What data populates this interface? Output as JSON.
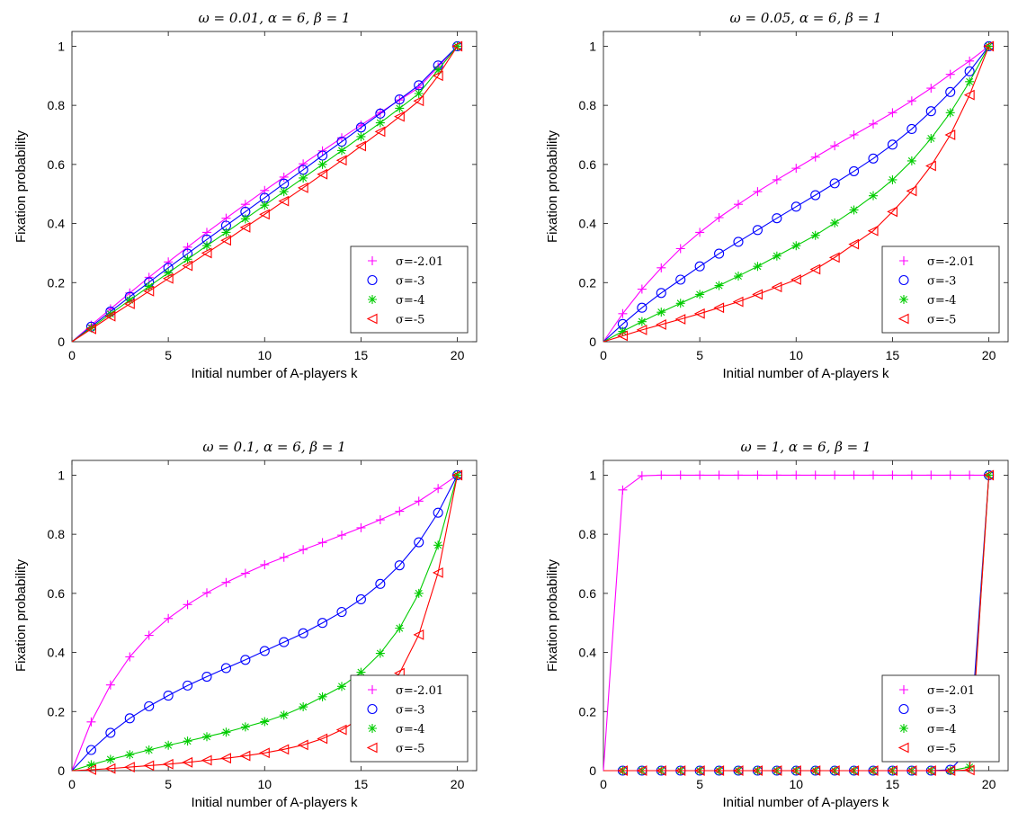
{
  "chart_data": [
    {
      "type": "line",
      "title": "ω = 0.01, α = 6, β = 1",
      "xlabel": "Initial number of A-players k",
      "ylabel": "Fixation probability",
      "xlim": [
        0,
        21
      ],
      "ylim": [
        0,
        1.05
      ],
      "xticks": [
        "0",
        "5",
        "10",
        "15",
        "20"
      ],
      "yticks": [
        "0",
        "0.2",
        "0.4",
        "0.6",
        "0.8",
        "1"
      ],
      "legend_position": "lower-right",
      "x": [
        0,
        1,
        2,
        3,
        4,
        5,
        6,
        7,
        8,
        9,
        10,
        11,
        12,
        13,
        14,
        15,
        16,
        17,
        18,
        19,
        20
      ],
      "series": [
        {
          "name": "σ=-2.01",
          "color": "#ff00ff",
          "marker": "plus",
          "values": [
            0,
            0.056,
            0.111,
            0.165,
            0.218,
            0.27,
            0.32,
            0.37,
            0.418,
            0.465,
            0.512,
            0.557,
            0.602,
            0.646,
            0.69,
            0.733,
            0.776,
            0.818,
            0.86,
            0.93,
            1
          ]
        },
        {
          "name": "σ=-3",
          "color": "#0000ff",
          "marker": "circle",
          "values": [
            0,
            0.051,
            0.102,
            0.152,
            0.201,
            0.25,
            0.298,
            0.346,
            0.393,
            0.44,
            0.487,
            0.535,
            0.582,
            0.63,
            0.677,
            0.725,
            0.772,
            0.82,
            0.868,
            0.935,
            1
          ]
        },
        {
          "name": "σ=-4",
          "color": "#00cc00",
          "marker": "asterisk",
          "values": [
            0,
            0.047,
            0.094,
            0.141,
            0.187,
            0.233,
            0.279,
            0.325,
            0.37,
            0.416,
            0.462,
            0.508,
            0.554,
            0.6,
            0.647,
            0.694,
            0.741,
            0.79,
            0.84,
            0.92,
            1
          ]
        },
        {
          "name": "σ=-5",
          "color": "#ff0000",
          "marker": "triangle-left",
          "values": [
            0,
            0.043,
            0.086,
            0.128,
            0.171,
            0.214,
            0.257,
            0.3,
            0.343,
            0.387,
            0.431,
            0.476,
            0.521,
            0.567,
            0.614,
            0.662,
            0.711,
            0.762,
            0.815,
            0.9,
            1
          ]
        }
      ]
    },
    {
      "type": "line",
      "title": "ω = 0.05, α = 6, β = 1",
      "xlabel": "Initial number of A-players k",
      "ylabel": "Fixation probability",
      "xlim": [
        0,
        21
      ],
      "ylim": [
        0,
        1.05
      ],
      "xticks": [
        "0",
        "5",
        "10",
        "15",
        "20"
      ],
      "yticks": [
        "0",
        "0.2",
        "0.4",
        "0.6",
        "0.8",
        "1"
      ],
      "legend_position": "lower-right",
      "x": [
        0,
        1,
        2,
        3,
        4,
        5,
        6,
        7,
        8,
        9,
        10,
        11,
        12,
        13,
        14,
        15,
        16,
        17,
        18,
        19,
        20
      ],
      "series": [
        {
          "name": "σ=-2.01",
          "color": "#ff00ff",
          "marker": "plus",
          "values": [
            0,
            0.095,
            0.178,
            0.25,
            0.315,
            0.37,
            0.42,
            0.465,
            0.508,
            0.548,
            0.587,
            0.625,
            0.663,
            0.7,
            0.737,
            0.775,
            0.815,
            0.858,
            0.905,
            0.95,
            1
          ]
        },
        {
          "name": "σ=-3",
          "color": "#0000ff",
          "marker": "circle",
          "values": [
            0,
            0.06,
            0.115,
            0.165,
            0.21,
            0.255,
            0.298,
            0.338,
            0.378,
            0.418,
            0.457,
            0.496,
            0.536,
            0.577,
            0.62,
            0.667,
            0.72,
            0.78,
            0.845,
            0.915,
            1
          ]
        },
        {
          "name": "σ=-4",
          "color": "#00cc00",
          "marker": "asterisk",
          "values": [
            0,
            0.035,
            0.068,
            0.1,
            0.13,
            0.16,
            0.19,
            0.222,
            0.255,
            0.29,
            0.325,
            0.36,
            0.402,
            0.446,
            0.494,
            0.548,
            0.612,
            0.688,
            0.775,
            0.88,
            1
          ]
        },
        {
          "name": "σ=-5",
          "color": "#ff0000",
          "marker": "triangle-left",
          "values": [
            0,
            0.02,
            0.04,
            0.058,
            0.076,
            0.095,
            0.115,
            0.135,
            0.16,
            0.185,
            0.21,
            0.245,
            0.285,
            0.33,
            0.375,
            0.44,
            0.51,
            0.595,
            0.7,
            0.835,
            1
          ]
        }
      ]
    },
    {
      "type": "line",
      "title": "ω = 0.1, α = 6, β = 1",
      "xlabel": "Initial number of A-players k",
      "ylabel": "Fixation probability",
      "xlim": [
        0,
        21
      ],
      "ylim": [
        0,
        1.05
      ],
      "xticks": [
        "0",
        "5",
        "10",
        "15",
        "20"
      ],
      "yticks": [
        "0",
        "0.2",
        "0.4",
        "0.6",
        "0.8",
        "1"
      ],
      "legend_position": "lower-right",
      "x": [
        0,
        1,
        2,
        3,
        4,
        5,
        6,
        7,
        8,
        9,
        10,
        11,
        12,
        13,
        14,
        15,
        16,
        17,
        18,
        19,
        20
      ],
      "series": [
        {
          "name": "σ=-2.01",
          "color": "#ff00ff",
          "marker": "plus",
          "values": [
            0,
            0.165,
            0.29,
            0.385,
            0.458,
            0.515,
            0.562,
            0.602,
            0.637,
            0.668,
            0.697,
            0.722,
            0.748,
            0.772,
            0.797,
            0.822,
            0.849,
            0.878,
            0.912,
            0.955,
            1
          ]
        },
        {
          "name": "σ=-3",
          "color": "#0000ff",
          "marker": "circle",
          "values": [
            0,
            0.07,
            0.128,
            0.177,
            0.218,
            0.254,
            0.288,
            0.318,
            0.347,
            0.375,
            0.405,
            0.435,
            0.465,
            0.5,
            0.537,
            0.58,
            0.632,
            0.695,
            0.773,
            0.873,
            1
          ]
        },
        {
          "name": "σ=-4",
          "color": "#00cc00",
          "marker": "asterisk",
          "values": [
            0,
            0.02,
            0.038,
            0.054,
            0.07,
            0.086,
            0.1,
            0.115,
            0.13,
            0.148,
            0.166,
            0.188,
            0.216,
            0.25,
            0.285,
            0.333,
            0.397,
            0.482,
            0.6,
            0.763,
            1
          ]
        },
        {
          "name": "σ=-5",
          "color": "#ff0000",
          "marker": "triangle-left",
          "values": [
            0,
            0.003,
            0.007,
            0.012,
            0.017,
            0.022,
            0.028,
            0.035,
            0.042,
            0.05,
            0.06,
            0.072,
            0.087,
            0.108,
            0.138,
            0.178,
            0.24,
            0.33,
            0.46,
            0.67,
            1
          ]
        }
      ]
    },
    {
      "type": "line",
      "title": "ω = 1, α = 6, β = 1",
      "xlabel": "Initial number of A-players k",
      "ylabel": "Fixation probability",
      "xlim": [
        0,
        21
      ],
      "ylim": [
        0,
        1.05
      ],
      "xticks": [
        "0",
        "5",
        "10",
        "15",
        "20"
      ],
      "yticks": [
        "0",
        "0.2",
        "0.4",
        "0.6",
        "0.8",
        "1"
      ],
      "legend_position": "lower-right",
      "x": [
        0,
        1,
        2,
        3,
        4,
        5,
        6,
        7,
        8,
        9,
        10,
        11,
        12,
        13,
        14,
        15,
        16,
        17,
        18,
        19,
        20
      ],
      "series": [
        {
          "name": "σ=-2.01",
          "color": "#ff00ff",
          "marker": "plus",
          "values": [
            0,
            0.95,
            0.998,
            1,
            1,
            1,
            1,
            1,
            1,
            1,
            1,
            1,
            1,
            1,
            1,
            1,
            1,
            1,
            1,
            1,
            1
          ]
        },
        {
          "name": "σ=-3",
          "color": "#0000ff",
          "marker": "circle",
          "values": [
            0,
            0,
            0,
            0,
            0,
            0,
            0,
            0,
            0,
            0,
            0,
            0,
            0,
            0,
            0,
            0,
            0,
            0,
            0.003,
            0.072,
            1
          ]
        },
        {
          "name": "σ=-4",
          "color": "#00cc00",
          "marker": "asterisk",
          "values": [
            0,
            0,
            0,
            0,
            0,
            0,
            0,
            0,
            0,
            0,
            0,
            0,
            0,
            0,
            0,
            0,
            0,
            0,
            0,
            0.012,
            1
          ]
        },
        {
          "name": "σ=-5",
          "color": "#ff0000",
          "marker": "triangle-left",
          "values": [
            0,
            0,
            0,
            0,
            0,
            0,
            0,
            0,
            0,
            0,
            0,
            0,
            0,
            0,
            0,
            0,
            0,
            0,
            0,
            0.002,
            1
          ]
        }
      ]
    }
  ]
}
